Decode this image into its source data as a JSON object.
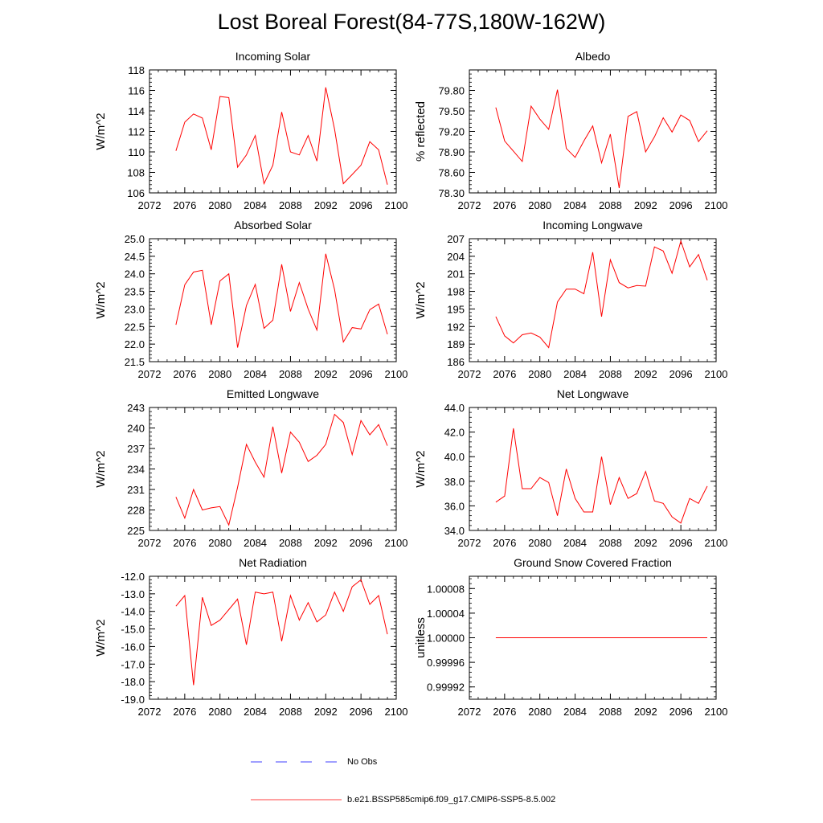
{
  "figure_title": "Lost Boreal Forest(84-77S,180W-162W)",
  "legend": {
    "items": [
      {
        "label": "No Obs",
        "color": "#0000ff",
        "dashed": true
      },
      {
        "label": "b.e21.BSSP585cmip6.f09_g17.CMIP6-SSP5-8.5.002",
        "color": "#ff0000",
        "dashed": false
      }
    ]
  },
  "chart_data": [
    {
      "type": "line",
      "title": "Incoming Solar",
      "xlabel": "",
      "ylabel": "W/m^2",
      "xlim": [
        2072,
        2100
      ],
      "xticks": [
        "2072",
        "2076",
        "2080",
        "2084",
        "2088",
        "2092",
        "2096",
        "2100"
      ],
      "ylim": [
        106,
        118
      ],
      "yticks": [
        "106",
        "108",
        "110",
        "112",
        "114",
        "116",
        "118"
      ],
      "series": [
        {
          "color": "#ff0000",
          "x": [
            2075,
            2076,
            2077,
            2078,
            2079,
            2080,
            2081,
            2082,
            2083,
            2084,
            2085,
            2086,
            2087,
            2088,
            2089,
            2090,
            2091,
            2092,
            2093,
            2094,
            2095,
            2096,
            2097,
            2098,
            2099
          ],
          "y": [
            110.1,
            112.9,
            113.7,
            113.3,
            110.2,
            115.4,
            115.3,
            108.5,
            109.7,
            111.6,
            106.9,
            108.7,
            113.9,
            110.0,
            109.7,
            111.6,
            109.1,
            116.3,
            112.2,
            106.9,
            107.8,
            108.7,
            111.0,
            110.2,
            106.8
          ]
        }
      ]
    },
    {
      "type": "line",
      "title": "Albedo",
      "xlabel": "",
      "ylabel": "% reflected",
      "xlim": [
        2072,
        2100
      ],
      "xticks": [
        "2072",
        "2076",
        "2080",
        "2084",
        "2088",
        "2092",
        "2096",
        "2100"
      ],
      "ylim": [
        78.3,
        80.1
      ],
      "yticks": [
        "78.30",
        "78.60",
        "78.90",
        "79.20",
        "79.50",
        "79.80"
      ],
      "series": [
        {
          "color": "#ff0000",
          "x": [
            2075,
            2076,
            2077,
            2078,
            2079,
            2080,
            2081,
            2082,
            2083,
            2084,
            2085,
            2086,
            2087,
            2088,
            2089,
            2090,
            2091,
            2092,
            2093,
            2094,
            2095,
            2096,
            2097,
            2098,
            2099
          ],
          "y": [
            79.55,
            79.06,
            78.91,
            78.76,
            79.57,
            79.38,
            79.23,
            79.81,
            78.95,
            78.82,
            79.06,
            79.28,
            78.74,
            79.16,
            78.37,
            79.42,
            79.49,
            78.9,
            79.12,
            79.4,
            79.19,
            79.44,
            79.36,
            79.05,
            79.21
          ]
        }
      ]
    },
    {
      "type": "line",
      "title": "Absorbed Solar",
      "xlabel": "",
      "ylabel": "W/m^2",
      "xlim": [
        2072,
        2100
      ],
      "xticks": [
        "2072",
        "2076",
        "2080",
        "2084",
        "2088",
        "2092",
        "2096",
        "2100"
      ],
      "ylim": [
        21.5,
        25.0
      ],
      "yticks": [
        "21.5",
        "22.0",
        "22.5",
        "23.0",
        "23.5",
        "24.0",
        "24.5",
        "25.0"
      ],
      "series": [
        {
          "color": "#ff0000",
          "x": [
            2075,
            2076,
            2077,
            2078,
            2079,
            2080,
            2081,
            2082,
            2083,
            2084,
            2085,
            2086,
            2087,
            2088,
            2089,
            2090,
            2091,
            2092,
            2093,
            2094,
            2095,
            2096,
            2097,
            2098,
            2099
          ],
          "y": [
            22.55,
            23.69,
            24.05,
            24.1,
            22.55,
            23.8,
            24.0,
            21.9,
            23.1,
            23.7,
            22.45,
            22.68,
            24.27,
            22.93,
            23.75,
            23.0,
            22.4,
            24.57,
            23.55,
            22.06,
            22.47,
            22.43,
            22.98,
            23.14,
            22.28
          ]
        }
      ]
    },
    {
      "type": "line",
      "title": "Incoming Longwave",
      "xlabel": "",
      "ylabel": "W/m^2",
      "xlim": [
        2072,
        2100
      ],
      "xticks": [
        "2072",
        "2076",
        "2080",
        "2084",
        "2088",
        "2092",
        "2096",
        "2100"
      ],
      "ylim": [
        186,
        207
      ],
      "yticks": [
        "186",
        "189",
        "192",
        "195",
        "198",
        "201",
        "204",
        "207"
      ],
      "series": [
        {
          "color": "#ff0000",
          "x": [
            2075,
            2076,
            2077,
            2078,
            2079,
            2080,
            2081,
            2082,
            2083,
            2084,
            2085,
            2086,
            2087,
            2088,
            2089,
            2090,
            2091,
            2092,
            2093,
            2094,
            2095,
            2096,
            2097,
            2098,
            2099
          ],
          "y": [
            193.7,
            190.4,
            189.2,
            190.6,
            190.9,
            190.2,
            188.4,
            196.2,
            198.4,
            198.4,
            197.6,
            204.7,
            193.7,
            203.4,
            199.5,
            198.6,
            199.0,
            198.9,
            205.6,
            204.9,
            201.1,
            206.6,
            202.2,
            204.3,
            199.9
          ]
        }
      ]
    },
    {
      "type": "line",
      "title": "Emitted Longwave",
      "xlabel": "",
      "ylabel": "W/m^2",
      "xlim": [
        2072,
        2100
      ],
      "xticks": [
        "2072",
        "2076",
        "2080",
        "2084",
        "2088",
        "2092",
        "2096",
        "2100"
      ],
      "ylim": [
        225,
        243
      ],
      "yticks": [
        "225",
        "228",
        "231",
        "234",
        "237",
        "240",
        "243"
      ],
      "series": [
        {
          "color": "#ff0000",
          "x": [
            2075,
            2076,
            2077,
            2078,
            2079,
            2080,
            2081,
            2082,
            2083,
            2084,
            2085,
            2086,
            2087,
            2088,
            2089,
            2090,
            2091,
            2092,
            2093,
            2094,
            2095,
            2096,
            2097,
            2098,
            2099
          ],
          "y": [
            229.9,
            226.8,
            231.0,
            228.0,
            228.3,
            228.5,
            225.8,
            231.3,
            237.6,
            235.0,
            232.8,
            240.2,
            233.4,
            239.4,
            237.9,
            235.1,
            236.0,
            237.6,
            242.0,
            240.8,
            236.1,
            241.1,
            239.0,
            240.5,
            237.4
          ]
        }
      ]
    },
    {
      "type": "line",
      "title": "Net Longwave",
      "xlabel": "",
      "ylabel": "W/m^2",
      "xlim": [
        2072,
        2100
      ],
      "xticks": [
        "2072",
        "2076",
        "2080",
        "2084",
        "2088",
        "2092",
        "2096",
        "2100"
      ],
      "ylim": [
        34.0,
        44.0
      ],
      "yticks": [
        "34.0",
        "36.0",
        "38.0",
        "40.0",
        "42.0",
        "44.0"
      ],
      "series": [
        {
          "color": "#ff0000",
          "x": [
            2075,
            2076,
            2077,
            2078,
            2079,
            2080,
            2081,
            2082,
            2083,
            2084,
            2085,
            2086,
            2087,
            2088,
            2089,
            2090,
            2091,
            2092,
            2093,
            2094,
            2095,
            2096,
            2097,
            2098,
            2099
          ],
          "y": [
            36.3,
            36.8,
            42.3,
            37.4,
            37.4,
            38.3,
            37.9,
            35.2,
            39.0,
            36.6,
            35.5,
            35.5,
            40.0,
            36.1,
            38.3,
            36.6,
            37.0,
            38.8,
            36.4,
            36.2,
            35.1,
            34.6,
            36.6,
            36.2,
            37.6
          ]
        }
      ]
    },
    {
      "type": "line",
      "title": "Net Radiation",
      "xlabel": "",
      "ylabel": "W/m^2",
      "xlim": [
        2072,
        2100
      ],
      "xticks": [
        "2072",
        "2076",
        "2080",
        "2084",
        "2088",
        "2092",
        "2096",
        "2100"
      ],
      "ylim": [
        -19.0,
        -12.0
      ],
      "yticks": [
        "-19.0",
        "-18.0",
        "-17.0",
        "-16.0",
        "-15.0",
        "-14.0",
        "-13.0",
        "-12.0"
      ],
      "series": [
        {
          "color": "#ff0000",
          "x": [
            2075,
            2076,
            2077,
            2078,
            2079,
            2080,
            2081,
            2082,
            2083,
            2084,
            2085,
            2086,
            2087,
            2088,
            2089,
            2090,
            2091,
            2092,
            2093,
            2094,
            2095,
            2096,
            2097,
            2098,
            2099
          ],
          "y": [
            -13.7,
            -13.1,
            -18.2,
            -13.2,
            -14.8,
            -14.5,
            -13.9,
            -13.3,
            -15.9,
            -12.9,
            -13.0,
            -12.9,
            -15.7,
            -13.1,
            -14.5,
            -13.5,
            -14.6,
            -14.2,
            -12.9,
            -14.0,
            -12.6,
            -12.2,
            -13.6,
            -13.1,
            -15.3
          ]
        }
      ]
    },
    {
      "type": "line",
      "title": "Ground Snow Covered Fraction",
      "xlabel": "",
      "ylabel": "unitless",
      "xlim": [
        2072,
        2100
      ],
      "xticks": [
        "2072",
        "2076",
        "2080",
        "2084",
        "2088",
        "2092",
        "2096",
        "2100"
      ],
      "ylim": [
        0.9999,
        1.0001
      ],
      "yticks": [
        "0.99992",
        "0.99996",
        "1.00000",
        "1.00004",
        "1.00008"
      ],
      "series": [
        {
          "color": "#ff0000",
          "x": [
            2075,
            2076,
            2077,
            2078,
            2079,
            2080,
            2081,
            2082,
            2083,
            2084,
            2085,
            2086,
            2087,
            2088,
            2089,
            2090,
            2091,
            2092,
            2093,
            2094,
            2095,
            2096,
            2097,
            2098,
            2099
          ],
          "y": [
            1.0,
            1.0,
            1.0,
            1.0,
            1.0,
            1.0,
            1.0,
            1.0,
            1.0,
            1.0,
            1.0,
            1.0,
            1.0,
            1.0,
            1.0,
            1.0,
            1.0,
            1.0,
            1.0,
            1.0,
            1.0,
            1.0,
            1.0,
            1.0,
            1.0
          ]
        }
      ]
    }
  ]
}
